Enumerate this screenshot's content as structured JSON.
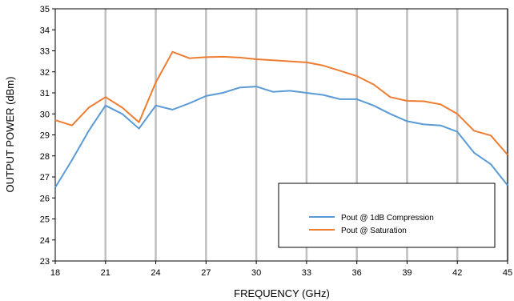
{
  "chart_data": {
    "type": "line",
    "title": "",
    "xlabel": "FREQUENCY (GHz)",
    "ylabel": "OUTPUT POWER (dBm)",
    "xlim": [
      18,
      45
    ],
    "ylim": [
      23,
      35
    ],
    "x_ticks": [
      18,
      21,
      24,
      27,
      30,
      33,
      36,
      39,
      42,
      45
    ],
    "y_ticks": [
      23,
      24,
      25,
      26,
      27,
      28,
      29,
      30,
      31,
      32,
      33,
      34,
      35
    ],
    "grid": "vertical",
    "legend_position": "bottom-right",
    "series": [
      {
        "name": "Pout @ 1dB Compression",
        "color": "#5B9BD5",
        "x": [
          18,
          19,
          20,
          21,
          22,
          23,
          24,
          25,
          26,
          27,
          28,
          29,
          30,
          31,
          32,
          33,
          34,
          35,
          36,
          37,
          38,
          39,
          40,
          41,
          42,
          43,
          44,
          45
        ],
        "y": [
          26.5,
          27.8,
          29.2,
          30.4,
          30.0,
          29.3,
          30.4,
          30.2,
          30.5,
          30.85,
          31.0,
          31.25,
          31.3,
          31.05,
          31.1,
          31.0,
          30.9,
          30.7,
          30.7,
          30.4,
          30.0,
          29.65,
          29.5,
          29.45,
          29.15,
          28.15,
          27.6,
          26.6
        ]
      },
      {
        "name": "Pout @ Saturation",
        "color": "#ED7D31",
        "x": [
          18,
          19,
          20,
          21,
          22,
          23,
          24,
          25,
          26,
          27,
          28,
          29,
          30,
          31,
          32,
          33,
          34,
          35,
          36,
          37,
          38,
          39,
          40,
          41,
          42,
          43,
          44,
          45
        ],
        "y": [
          29.7,
          29.45,
          30.3,
          30.8,
          30.3,
          29.6,
          31.5,
          32.95,
          32.65,
          32.7,
          32.72,
          32.68,
          32.6,
          32.55,
          32.5,
          32.45,
          32.3,
          32.05,
          31.8,
          31.4,
          30.8,
          30.62,
          30.6,
          30.45,
          30.0,
          29.2,
          28.97,
          28.05
        ]
      }
    ]
  }
}
